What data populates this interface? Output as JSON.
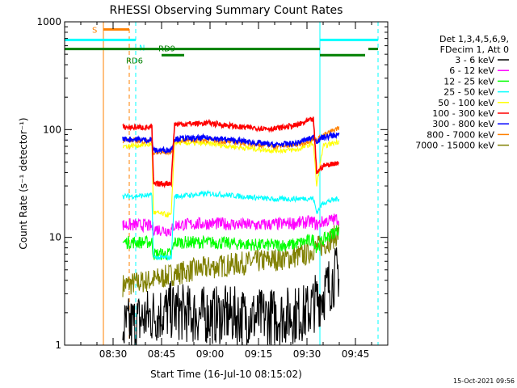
{
  "chart_data": {
    "type": "line",
    "title": "RHESSI Observing Summary Count Rates",
    "xlabel": "Start Time (16-Jul-10 08:15:02)",
    "ylabel": "Count Rate (s⁻¹ detector⁻¹)",
    "yscale": "log",
    "ylim": [
      1,
      1000
    ],
    "xlim_minutes": [
      0,
      100
    ],
    "x_unit": "minutes after 08:15:02",
    "y_ticks": [
      {
        "value": 1,
        "label": "1"
      },
      {
        "value": 10,
        "label": "10"
      },
      {
        "value": 100,
        "label": "100"
      },
      {
        "value": 1000,
        "label": "1000"
      }
    ],
    "x_ticks": [
      {
        "value": 15,
        "label": "08:30"
      },
      {
        "value": 30,
        "label": "08:45"
      },
      {
        "value": 45,
        "label": "09:00"
      },
      {
        "value": 60,
        "label": "09:15"
      },
      {
        "value": 75,
        "label": "09:30"
      },
      {
        "value": 90,
        "label": "09:45"
      }
    ],
    "legend_header": [
      "Det 1,3,4,5,6,9,",
      "FDecim 1, Att 0"
    ],
    "series": [
      {
        "name": "3 - 6 keV",
        "color": "#000000",
        "key": "b1",
        "points": [
          [
            18,
            1.4
          ],
          [
            25,
            1.8
          ],
          [
            30,
            2.0
          ],
          [
            33,
            2.1
          ],
          [
            40,
            1.9
          ],
          [
            50,
            1.9
          ],
          [
            60,
            1.8
          ],
          [
            70,
            1.9
          ],
          [
            75,
            2.0
          ],
          [
            77,
            2.4
          ],
          [
            80,
            3.0
          ],
          [
            85,
            5.0
          ]
        ]
      },
      {
        "name": "6 - 12 keV",
        "color": "#ff00ff",
        "key": "b2",
        "points": [
          [
            18,
            13
          ],
          [
            25,
            13
          ],
          [
            27,
            12.5
          ],
          [
            27.5,
            12
          ],
          [
            33,
            11.5
          ],
          [
            34,
            13
          ],
          [
            45,
            13.5
          ],
          [
            60,
            13
          ],
          [
            70,
            13.5
          ],
          [
            77,
            14
          ],
          [
            78,
            13
          ],
          [
            80,
            14
          ],
          [
            85,
            15
          ]
        ]
      },
      {
        "name": "12 - 25 keV",
        "color": "#00ff00",
        "key": "b3",
        "points": [
          [
            18,
            9
          ],
          [
            27,
            9
          ],
          [
            27.5,
            7
          ],
          [
            33,
            7
          ],
          [
            34,
            9
          ],
          [
            45,
            9
          ],
          [
            60,
            8.5
          ],
          [
            70,
            8.5
          ],
          [
            77,
            9.5
          ],
          [
            78,
            8
          ],
          [
            80,
            9.5
          ],
          [
            85,
            12
          ]
        ]
      },
      {
        "name": "25 - 50 keV",
        "color": "#00ffff",
        "key": "b4",
        "points": [
          [
            18,
            24
          ],
          [
            27,
            24.5
          ],
          [
            27.5,
            6.5
          ],
          [
            33,
            6.5
          ],
          [
            34,
            24
          ],
          [
            45,
            25.5
          ],
          [
            55,
            24
          ],
          [
            65,
            22.5
          ],
          [
            75,
            23
          ],
          [
            77,
            23
          ],
          [
            78,
            17
          ],
          [
            80,
            21
          ],
          [
            85,
            23
          ]
        ]
      },
      {
        "name": "50 - 100 keV",
        "color": "#ffff00",
        "key": "b5",
        "points": [
          [
            18,
            70
          ],
          [
            27,
            73
          ],
          [
            27.5,
            17
          ],
          [
            33,
            16
          ],
          [
            34,
            76
          ],
          [
            45,
            74
          ],
          [
            55,
            68
          ],
          [
            65,
            64
          ],
          [
            72,
            65
          ],
          [
            77,
            75
          ],
          [
            78,
            30
          ],
          [
            80,
            70
          ],
          [
            85,
            78
          ]
        ]
      },
      {
        "name": "100 - 300 keV",
        "color": "#ff0000",
        "key": "b6",
        "points": [
          [
            18,
            105
          ],
          [
            27,
            105
          ],
          [
            27.5,
            31
          ],
          [
            33,
            32
          ],
          [
            34,
            112
          ],
          [
            45,
            115
          ],
          [
            55,
            105
          ],
          [
            65,
            102
          ],
          [
            72,
            110
          ],
          [
            77,
            125
          ],
          [
            78,
            40
          ],
          [
            80,
            46
          ],
          [
            85,
            50
          ]
        ]
      },
      {
        "name": "300 - 800 keV",
        "color": "#0000ff",
        "key": "b7",
        "points": [
          [
            18,
            82
          ],
          [
            27,
            80
          ],
          [
            27.5,
            64
          ],
          [
            33,
            65
          ],
          [
            34,
            82
          ],
          [
            45,
            84
          ],
          [
            55,
            78
          ],
          [
            65,
            72
          ],
          [
            72,
            75
          ],
          [
            77,
            85
          ],
          [
            78,
            78
          ],
          [
            80,
            85
          ],
          [
            85,
            90
          ]
        ]
      },
      {
        "name": "800 - 7000 keV",
        "color": "#ff8000",
        "key": "b8",
        "points": [
          [
            18,
            80
          ],
          [
            27,
            78
          ],
          [
            27.5,
            60
          ],
          [
            33,
            62
          ],
          [
            34,
            80
          ],
          [
            45,
            80
          ],
          [
            55,
            75
          ],
          [
            65,
            70
          ],
          [
            72,
            72
          ],
          [
            77,
            82
          ],
          [
            78,
            80
          ],
          [
            80,
            88
          ],
          [
            85,
            105
          ]
        ]
      },
      {
        "name": "7000 - 15000 keV",
        "color": "#808000",
        "key": "b9",
        "points": [
          [
            18,
            3.6
          ],
          [
            27,
            4.0
          ],
          [
            30,
            4.2
          ],
          [
            33,
            4.5
          ],
          [
            40,
            5.0
          ],
          [
            50,
            5.5
          ],
          [
            60,
            6.0
          ],
          [
            70,
            6.5
          ],
          [
            75,
            7
          ],
          [
            77,
            7.8
          ],
          [
            80,
            8.5
          ],
          [
            85,
            11
          ]
        ]
      }
    ],
    "vertical_lines": [
      {
        "x": 0,
        "color": "#00ffff",
        "style": "solid"
      },
      {
        "x": 12,
        "color": "#ff8000",
        "style": "solid"
      },
      {
        "x": 20,
        "color": "#ff8000",
        "style": "dashed"
      },
      {
        "x": 22,
        "color": "#00ffff",
        "style": "dashed"
      },
      {
        "x": 79,
        "color": "#00ffff",
        "style": "solid"
      },
      {
        "x": 97,
        "color": "#00ffff",
        "style": "dashed"
      }
    ],
    "flag_bars": [
      {
        "label": "S",
        "color": "#ff8000",
        "level": 850,
        "segments": [
          [
            12,
            20
          ]
        ]
      },
      {
        "label": "N",
        "color": "#00ffff",
        "level": 680,
        "segments": [
          [
            0,
            22
          ],
          [
            79,
            97
          ]
        ]
      },
      {
        "label": "RD9",
        "color": "#008000",
        "level": 560,
        "segments": [
          [
            0,
            79
          ],
          [
            94,
            97
          ]
        ]
      },
      {
        "label": "RD6",
        "color": "#008000",
        "level": 490,
        "segments": [
          [
            30,
            37
          ],
          [
            79,
            93
          ]
        ]
      }
    ]
  },
  "footer": {
    "timestamp": "15-Oct-2021 09:56"
  }
}
